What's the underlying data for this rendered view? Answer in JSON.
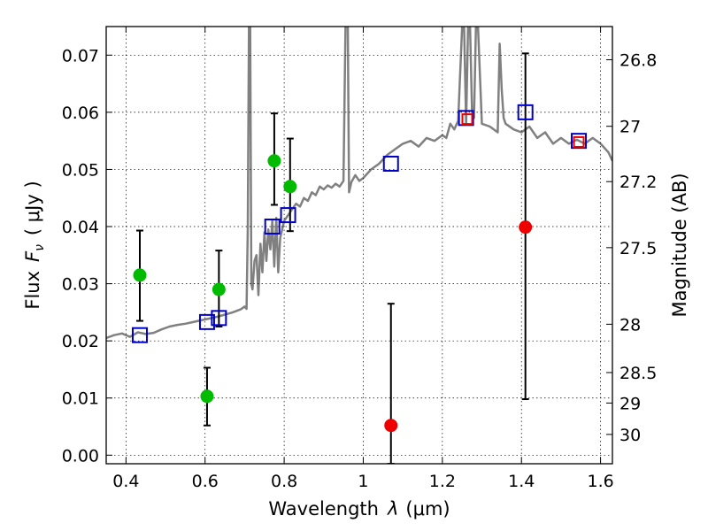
{
  "chart_data": {
    "type": "scatter",
    "xlabel": "Wavelength",
    "xlabel_symbol": "λ",
    "xlabel_unit": "(μm)",
    "ylabel": "Flux",
    "ylabel_symbol": "F",
    "ylabel_subscript": "ν",
    "ylabel_unit": "( μJy )",
    "y2label": "Magnitude (AB)",
    "xlim": [
      0.35,
      1.63
    ],
    "ylim": [
      -0.0015,
      0.075
    ],
    "grid": true,
    "x_ticks": [
      {
        "value": 0.4,
        "label": "0.4"
      },
      {
        "value": 0.6,
        "label": "0.6"
      },
      {
        "value": 0.8,
        "label": "0.8"
      },
      {
        "value": 1.0,
        "label": "1"
      },
      {
        "value": 1.2,
        "label": "1.2"
      },
      {
        "value": 1.4,
        "label": "1.4"
      },
      {
        "value": 1.6,
        "label": "1.6"
      }
    ],
    "y_ticks": [
      {
        "value": 0.0,
        "label": "0.00"
      },
      {
        "value": 0.01,
        "label": "0.01"
      },
      {
        "value": 0.02,
        "label": "0.02"
      },
      {
        "value": 0.03,
        "label": "0.03"
      },
      {
        "value": 0.04,
        "label": "0.04"
      },
      {
        "value": 0.05,
        "label": "0.05"
      },
      {
        "value": 0.06,
        "label": "0.06"
      },
      {
        "value": 0.07,
        "label": "0.07"
      }
    ],
    "y2_ticks": [
      {
        "mag": 26.8,
        "label": "26.8"
      },
      {
        "mag": 27.0,
        "label": "27"
      },
      {
        "mag": 27.2,
        "label": "27.2"
      },
      {
        "mag": 27.5,
        "label": "27.5"
      },
      {
        "mag": 28.0,
        "label": "28"
      },
      {
        "mag": 28.5,
        "label": "28.5"
      },
      {
        "mag": 29.0,
        "label": "29"
      },
      {
        "mag": 30.0,
        "label": "30"
      }
    ],
    "spectrum": {
      "color": "#808080",
      "x": [
        0.35,
        0.37,
        0.39,
        0.41,
        0.43,
        0.45,
        0.47,
        0.49,
        0.51,
        0.53,
        0.55,
        0.57,
        0.59,
        0.61,
        0.63,
        0.65,
        0.67,
        0.69,
        0.7,
        0.705,
        0.708,
        0.711,
        0.714,
        0.717,
        0.72,
        0.725,
        0.73,
        0.735,
        0.74,
        0.745,
        0.75,
        0.755,
        0.76,
        0.765,
        0.77,
        0.775,
        0.78,
        0.785,
        0.79,
        0.8,
        0.81,
        0.82,
        0.83,
        0.84,
        0.85,
        0.86,
        0.87,
        0.88,
        0.89,
        0.9,
        0.91,
        0.92,
        0.93,
        0.94,
        0.95,
        0.955,
        0.958,
        0.961,
        0.964,
        0.97,
        0.98,
        0.99,
        1.0,
        1.02,
        1.04,
        1.06,
        1.08,
        1.1,
        1.12,
        1.14,
        1.16,
        1.18,
        1.2,
        1.21,
        1.22,
        1.23,
        1.24,
        1.25,
        1.255,
        1.26,
        1.265,
        1.27,
        1.275,
        1.28,
        1.285,
        1.29,
        1.3,
        1.32,
        1.34,
        1.345,
        1.35,
        1.355,
        1.36,
        1.38,
        1.4,
        1.42,
        1.44,
        1.46,
        1.48,
        1.5,
        1.52,
        1.54,
        1.56,
        1.58,
        1.6,
        1.62,
        1.63
      ],
      "y": [
        0.0205,
        0.021,
        0.0213,
        0.0207,
        0.0215,
        0.0212,
        0.0214,
        0.022,
        0.0225,
        0.0228,
        0.023,
        0.0233,
        0.0236,
        0.0239,
        0.0242,
        0.0246,
        0.025,
        0.0255,
        0.026,
        0.0256,
        0.04,
        0.075,
        0.075,
        0.03,
        0.029,
        0.034,
        0.035,
        0.028,
        0.037,
        0.032,
        0.039,
        0.034,
        0.0395,
        0.036,
        0.041,
        0.033,
        0.0415,
        0.032,
        0.038,
        0.041,
        0.042,
        0.043,
        0.044,
        0.0435,
        0.045,
        0.0445,
        0.046,
        0.0455,
        0.047,
        0.0465,
        0.0472,
        0.0468,
        0.0475,
        0.047,
        0.048,
        0.075,
        0.075,
        0.075,
        0.046,
        0.0478,
        0.049,
        0.048,
        0.0485,
        0.05,
        0.051,
        0.0525,
        0.0535,
        0.0545,
        0.055,
        0.054,
        0.0555,
        0.055,
        0.056,
        0.0555,
        0.058,
        0.057,
        0.0585,
        0.075,
        0.075,
        0.058,
        0.075,
        0.075,
        0.06,
        0.059,
        0.075,
        0.075,
        0.058,
        0.0575,
        0.0565,
        0.072,
        0.064,
        0.059,
        0.058,
        0.057,
        0.0565,
        0.0575,
        0.0555,
        0.0565,
        0.0545,
        0.0555,
        0.0545,
        0.0552,
        0.0545,
        0.0555,
        0.0545,
        0.053,
        0.0515
      ]
    },
    "model_points": {
      "marker": "open-square",
      "color": "#0000cc",
      "x": [
        0.435,
        0.605,
        0.635,
        0.77,
        0.81,
        1.07,
        1.26,
        1.41,
        1.545
      ],
      "y": [
        0.021,
        0.0233,
        0.024,
        0.04,
        0.042,
        0.051,
        0.059,
        0.06,
        0.055
      ]
    },
    "green_points": {
      "marker": "circle",
      "color": "#00bb00",
      "x": [
        0.435,
        0.605,
        0.635,
        0.775,
        0.815
      ],
      "y": [
        0.0315,
        0.0103,
        0.029,
        0.0515,
        0.047
      ],
      "err_low": [
        0.0235,
        0.0052,
        0.0225,
        0.0438,
        0.0392
      ],
      "err_high": [
        0.0393,
        0.0153,
        0.0358,
        0.0598,
        0.0554
      ]
    },
    "red_points": {
      "marker": "circle",
      "color": "#ee0000",
      "x": [
        1.07,
        1.41
      ],
      "y": [
        0.0052,
        0.0399
      ],
      "err_low": [
        -0.0015,
        0.0098
      ],
      "err_high": [
        0.0265,
        0.0703
      ]
    },
    "red_small_squares": {
      "marker": "open-square",
      "color": "#ee0000",
      "x": [
        1.263,
        1.545
      ],
      "y": [
        0.0588,
        0.0548
      ]
    }
  }
}
